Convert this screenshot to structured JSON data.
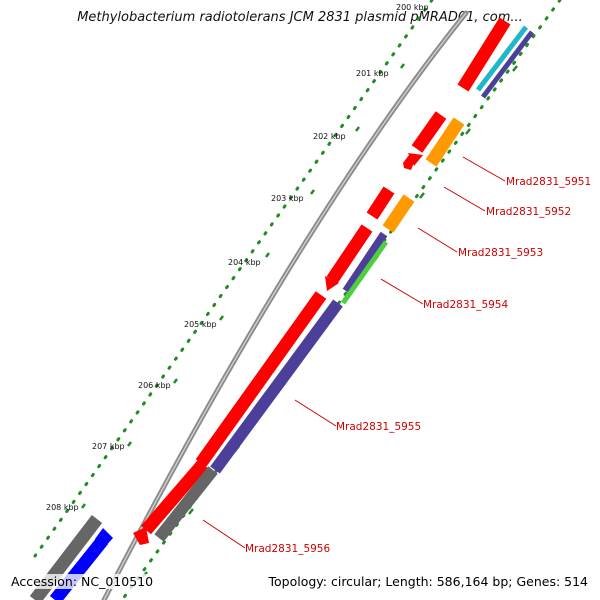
{
  "title": "Methylobacterium radiotolerans JCM 2831 plasmid pMRAD01, com...",
  "footer": {
    "accession": "Accession: NC_010510",
    "summary": "Topology: circular; Length: 586,164 bp; Genes: 514"
  },
  "ticks": [
    "200 kbp",
    "201 kbp",
    "202 kbp",
    "203 kbp",
    "204 kbp",
    "205 kbp",
    "206 kbp",
    "207 kbp",
    "208 kbp"
  ],
  "genes": [
    "Mrad2831_5951",
    "Mrad2831_5952",
    "Mrad2831_5953",
    "Mrad2831_5954",
    "Mrad2831_5955",
    "Mrad2831_5956"
  ],
  "colors": {
    "backbone": "#8c8c8c",
    "cds_forward": "#ff0000",
    "orange_feature": "#ff9900",
    "purple_feature": "#4b3f9a",
    "green_feature": "#4fcf3f",
    "teal_feature": "#1fb7c9",
    "gray_feature": "#666666",
    "blue_feature": "#0000ff",
    "tick_dots": "#228b22",
    "label": "#cc0000"
  }
}
